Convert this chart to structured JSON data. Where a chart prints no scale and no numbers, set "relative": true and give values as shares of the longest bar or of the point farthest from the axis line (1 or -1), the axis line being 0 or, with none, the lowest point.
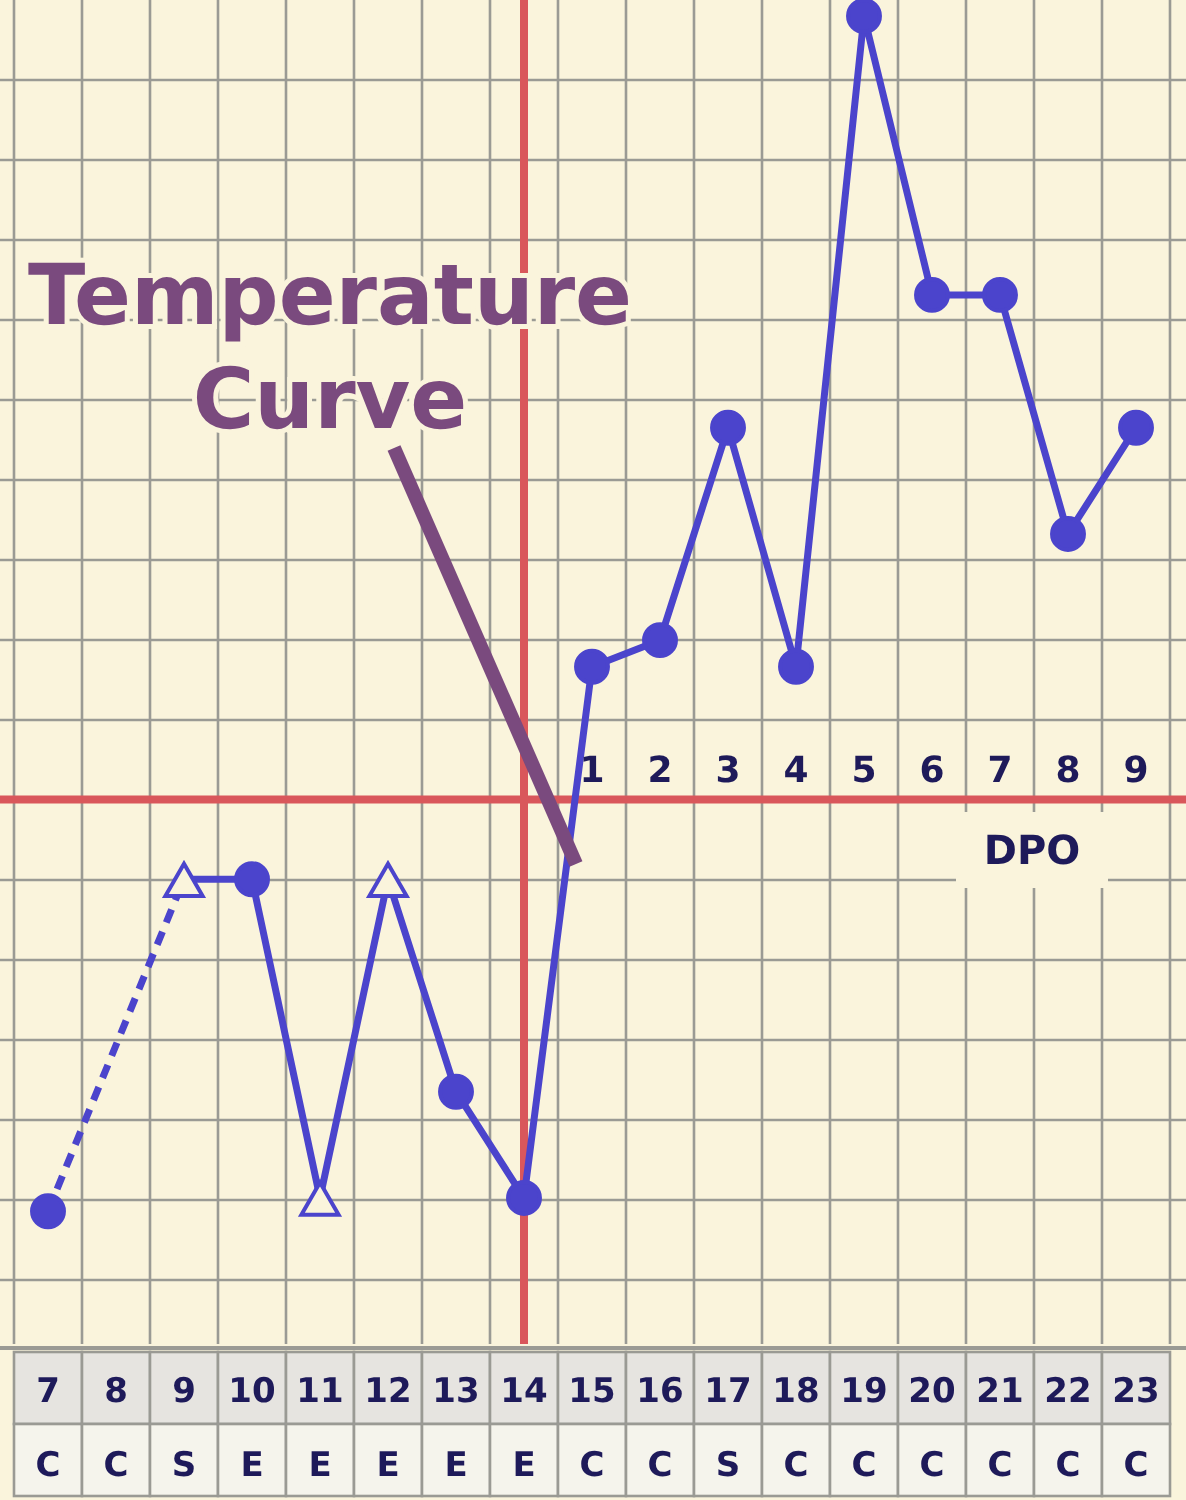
{
  "chart_data": {
    "type": "line",
    "relative": true,
    "grid": true,
    "categories": [
      "7",
      "8",
      "9",
      "10",
      "11",
      "12",
      "13",
      "14",
      "15",
      "16",
      "17",
      "18",
      "19",
      "20",
      "21",
      "22",
      "23"
    ],
    "series": [
      {
        "type": "line",
        "color": "#4b44cc",
        "line_style": "solid",
        "marker": "none",
        "values": [
          null,
          null,
          0.35,
          0.35,
          0.11,
          0.35,
          0.19,
          0.11,
          0.51,
          0.53,
          0.69,
          0.51,
          1,
          0.79,
          0.79,
          0.61,
          0.69
        ]
      },
      {
        "type": "line",
        "color": "#4b44cc",
        "line_style": "dashed",
        "marker": "none",
        "x": [
          "7",
          "9"
        ],
        "values": [
          0.1,
          0.35
        ]
      },
      {
        "type": "scatter",
        "color": "#4b44cc",
        "marker": "circle",
        "x": [
          "7",
          "10",
          "13",
          "14",
          "15",
          "16",
          "17",
          "18",
          "19",
          "20",
          "21",
          "22",
          "23"
        ],
        "values": [
          0.1,
          0.35,
          0.19,
          0.11,
          0.51,
          0.53,
          0.69,
          0.51,
          1,
          0.79,
          0.79,
          0.61,
          0.69
        ]
      },
      {
        "type": "scatter",
        "color": "#4b44cc",
        "marker": "triangle",
        "x": [
          "9",
          "11",
          "12"
        ],
        "values": [
          0.35,
          0.11,
          0.35
        ]
      }
    ],
    "ref_lines": [
      {
        "axis": "y",
        "value": 0.41,
        "color": "#d9575b"
      },
      {
        "axis": "x",
        "value": "14",
        "color": "#d9575b"
      }
    ],
    "annotations": [
      "Temperature Curve",
      "DPO",
      {
        "text": "1",
        "x": "15",
        "y": 0.41
      },
      {
        "text": "2",
        "x": "16",
        "y": 0.41
      },
      {
        "text": "3",
        "x": "17",
        "y": 0.41
      },
      {
        "text": "4",
        "x": "18",
        "y": 0.41
      },
      {
        "text": "5",
        "x": "19",
        "y": 0.41
      },
      {
        "text": "6",
        "x": "20",
        "y": 0.41
      },
      {
        "text": "7",
        "x": "21",
        "y": 0.41
      },
      {
        "text": "8",
        "x": "22",
        "y": 0.41
      },
      {
        "text": "9",
        "x": "23",
        "y": 0.41
      },
      "C",
      "C",
      "S",
      "E",
      "E",
      "E",
      "E",
      "E",
      "C",
      "C",
      "S",
      "C",
      "C",
      "C",
      "C",
      "C",
      "C"
    ]
  }
}
